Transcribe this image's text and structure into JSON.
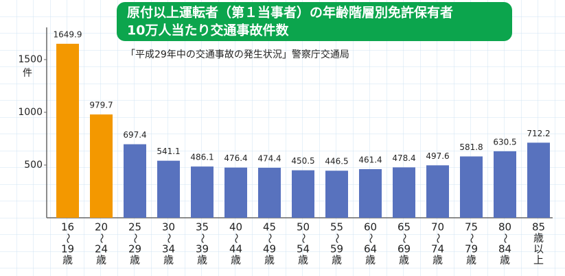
{
  "chart_data": {
    "type": "bar",
    "title": "原付以上運転者（第１当事者）の年齢階層別免許保有者",
    "subtitle": "10万人当たり交通事故件数",
    "source": "「平成29年中の交通事故の発生状況」警察庁交通局",
    "y_unit": "件",
    "categories": [
      [
        "16",
        "〜",
        "19",
        "歳"
      ],
      [
        "20",
        "〜",
        "24",
        "歳"
      ],
      [
        "25",
        "〜",
        "29",
        "歳"
      ],
      [
        "30",
        "〜",
        "34",
        "歳"
      ],
      [
        "35",
        "〜",
        "39",
        "歳"
      ],
      [
        "40",
        "〜",
        "44",
        "歳"
      ],
      [
        "45",
        "〜",
        "49",
        "歳"
      ],
      [
        "50",
        "〜",
        "54",
        "歳"
      ],
      [
        "55",
        "〜",
        "59",
        "歳"
      ],
      [
        "60",
        "〜",
        "64",
        "歳"
      ],
      [
        "65",
        "〜",
        "69",
        "歳"
      ],
      [
        "70",
        "〜",
        "74",
        "歳"
      ],
      [
        "75",
        "〜",
        "79",
        "歳"
      ],
      [
        "80",
        "〜",
        "84",
        "歳"
      ],
      [
        "85",
        "歳",
        "以",
        "上"
      ]
    ],
    "values": [
      1649.9,
      979.7,
      697.4,
      541.1,
      486.1,
      476.4,
      474.4,
      450.5,
      446.5,
      461.4,
      478.4,
      497.6,
      581.8,
      630.5,
      712.2
    ],
    "colors": [
      "#f39800",
      "#f39800",
      "#5872be",
      "#5872be",
      "#5872be",
      "#5872be",
      "#5872be",
      "#5872be",
      "#5872be",
      "#5872be",
      "#5872be",
      "#5872be",
      "#5872be",
      "#5872be",
      "#5872be"
    ],
    "ylim": [
      0,
      2000
    ],
    "yticks": [
      500,
      1000,
      1500
    ]
  }
}
